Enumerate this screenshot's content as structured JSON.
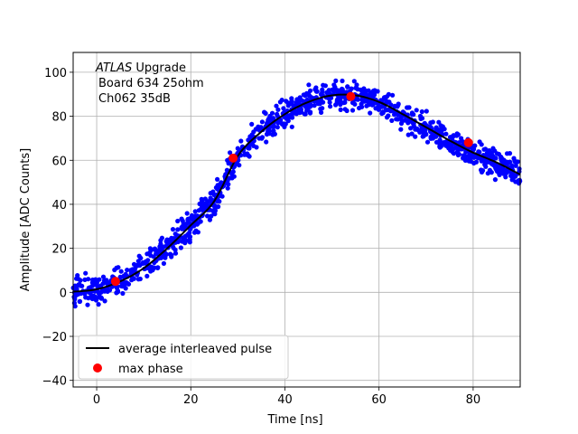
{
  "chart_data": {
    "type": "scatter",
    "title": "",
    "xlabel": "Time [ns]",
    "ylabel": "Amplitude [ADC Counts]",
    "xlim": [
      -5,
      90
    ],
    "ylim": [
      -43,
      109
    ],
    "xticks": [
      0,
      20,
      40,
      60,
      80
    ],
    "yticks": [
      -40,
      -20,
      0,
      20,
      40,
      60,
      80,
      100
    ],
    "grid": true,
    "legend_position": "lower-left",
    "annotation": {
      "line1_italic": "ATLAS",
      "line1_rest": " Upgrade",
      "line2": "Board 634 25ohm",
      "line3": "Ch062 35dB"
    },
    "series": [
      {
        "name": "average interleaved pulse",
        "kind": "line",
        "color": "#000000",
        "x": [
          -5,
          0,
          5,
          10,
          15,
          20,
          25,
          30,
          35,
          40,
          45,
          50,
          55,
          60,
          65,
          70,
          75,
          80,
          85,
          90
        ],
        "y": [
          0.3,
          1.4,
          5.0,
          11.0,
          20.0,
          30.5,
          41.5,
          62.0,
          73.0,
          81.0,
          86.5,
          89.5,
          89.5,
          86.5,
          81.0,
          75.0,
          69.0,
          63.5,
          59.0,
          53.5
        ]
      },
      {
        "name": "",
        "kind": "samples",
        "color": "#0000ff",
        "note_points": "dense scatter of sampled points around the average pulse with amplitude noise of about ±8 ADC counts"
      },
      {
        "name": "max phase",
        "kind": "marker",
        "color": "#ff0000",
        "x": [
          4,
          29,
          54,
          79
        ],
        "y": [
          5,
          61,
          89,
          68
        ]
      }
    ]
  }
}
